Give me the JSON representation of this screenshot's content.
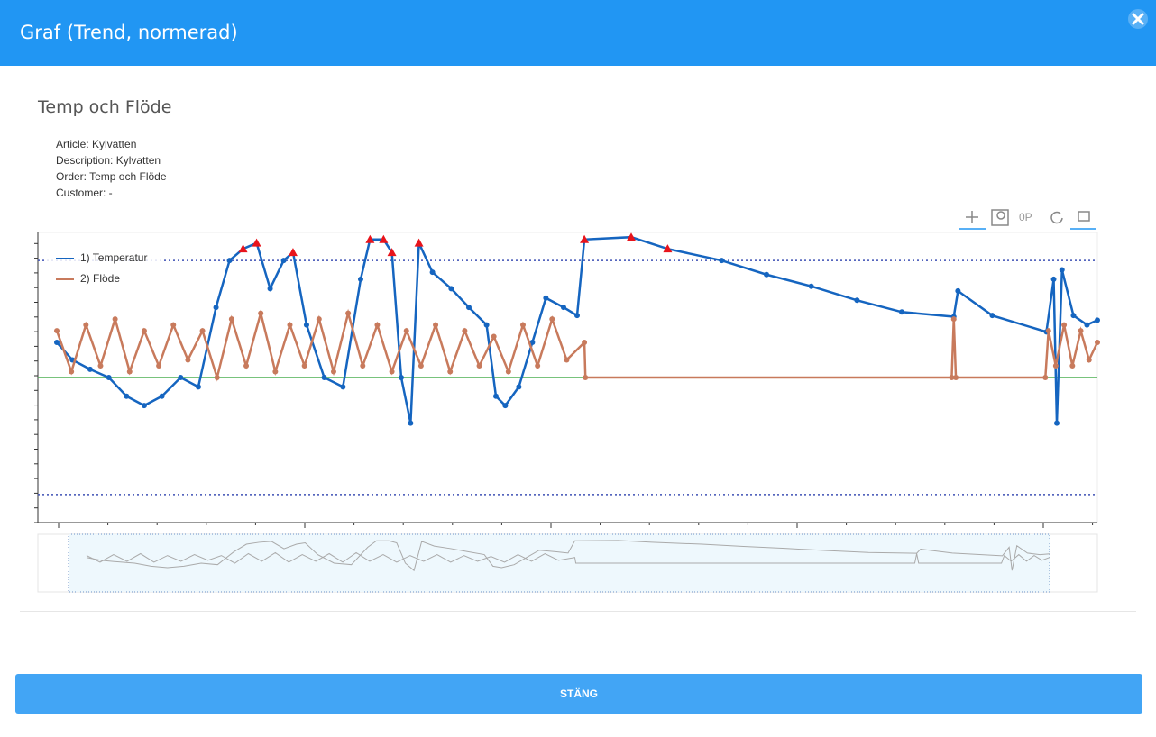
{
  "header": {
    "title": "Graf (Trend, normerad)"
  },
  "subtitle": "Temp och Flöde",
  "info": [
    "Article: Kylvatten",
    "Description: Kylvatten",
    "Order: Temp och Flöde",
    "Customer: -"
  ],
  "button": "STÄNG",
  "chart_data": {
    "type": "line",
    "xlim": [
      0,
      100
    ],
    "ylim": [
      -1.24,
      1.24
    ],
    "limits": [
      1,
      -1
    ],
    "limit_color": "#3f51b5",
    "baseline": 0,
    "baseline_color": "#4caf50",
    "alarm_color": "#e8141b",
    "series": [
      {
        "name": "1) Temperatur",
        "color": "#1565c0",
        "x": [
          0,
          1.5,
          3.2,
          5,
          6.7,
          8.4,
          10.1,
          11.9,
          13.6,
          15.3,
          16.6,
          17.9,
          19.2,
          20.5,
          21.8,
          22.7,
          24,
          25.7,
          27.5,
          29.2,
          30.1,
          31.4,
          32.2,
          33.1,
          34,
          34.8,
          36.1,
          37.9,
          39.6,
          41.3,
          42.2,
          43.1,
          44.4,
          45.7,
          47,
          48.7,
          50,
          50.7,
          55.2,
          58.7,
          63.9,
          68.2,
          72.5,
          76.9,
          81.2,
          86.2,
          86.6,
          89.9,
          95.1,
          95.8,
          96.1,
          96.6,
          97.7,
          99,
          100
        ],
        "values": [
          0.3,
          0.15,
          0.07,
          0,
          -0.16,
          -0.24,
          -0.16,
          0,
          -0.08,
          0.6,
          1.0,
          1.1,
          1.15,
          0.76,
          1.0,
          1.07,
          0.45,
          0,
          -0.08,
          0.84,
          1.18,
          1.18,
          1.07,
          0,
          -0.39,
          1.15,
          0.9,
          0.76,
          0.6,
          0.45,
          -0.16,
          -0.24,
          -0.08,
          0.3,
          0.68,
          0.6,
          0.53,
          1.18,
          1.2,
          1.1,
          1.0,
          0.88,
          0.78,
          0.66,
          0.56,
          0.52,
          0.74,
          0.53,
          0.39,
          0.84,
          -0.39,
          0.92,
          0.53,
          0.45,
          0.49
        ]
      },
      {
        "name": "2) Flöde",
        "color": "#c87a5c",
        "x": [
          0,
          1.4,
          2.8,
          4.2,
          5.6,
          7,
          8.4,
          9.8,
          11.2,
          12.6,
          14,
          15.4,
          16.8,
          18.2,
          19.6,
          21,
          22.4,
          23.8,
          25.2,
          26.6,
          28,
          29.4,
          30.8,
          32.2,
          33.6,
          35,
          36.4,
          37.8,
          39.2,
          40.6,
          42,
          43.4,
          44.8,
          46.2,
          47.6,
          49,
          50.7,
          50.8,
          86,
          86.2,
          86.4,
          95,
          95.3,
          96,
          96.8,
          97.6,
          98.4,
          99.2,
          100
        ],
        "values": [
          0.4,
          0.05,
          0.45,
          0.1,
          0.5,
          0.05,
          0.4,
          0.1,
          0.45,
          0.15,
          0.4,
          0,
          0.5,
          0.1,
          0.55,
          0.05,
          0.45,
          0.1,
          0.5,
          0.05,
          0.55,
          0.1,
          0.45,
          0.05,
          0.4,
          0.1,
          0.45,
          0.05,
          0.4,
          0.1,
          0.35,
          0.05,
          0.45,
          0.1,
          0.5,
          0.15,
          0.3,
          0,
          0,
          0.5,
          0,
          0,
          0.4,
          0.1,
          0.45,
          0.1,
          0.4,
          0.15,
          0.3
        ]
      }
    ]
  }
}
